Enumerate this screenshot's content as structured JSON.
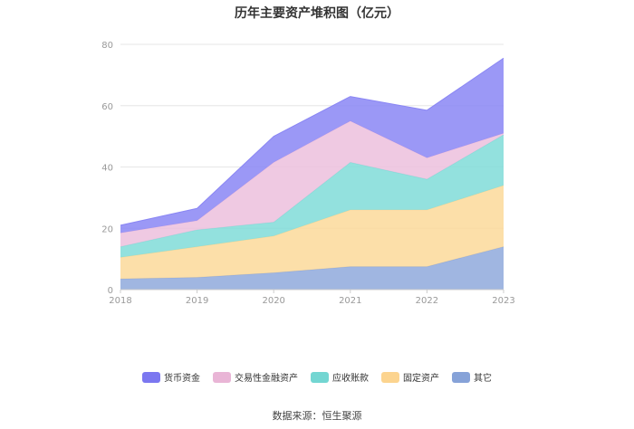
{
  "chart_data": {
    "type": "area",
    "stacked": true,
    "title": "历年主要资产堆积图（亿元）",
    "xlabel": "",
    "ylabel": "",
    "ylim": [
      0,
      80
    ],
    "yticks": [
      0,
      20,
      40,
      60,
      80
    ],
    "categories": [
      "2018",
      "2019",
      "2020",
      "2021",
      "2022",
      "2023"
    ],
    "series": [
      {
        "name": "其它",
        "color": "#8fa9dc",
        "values": [
          3.5,
          4.0,
          5.5,
          7.5,
          7.5,
          14.0
        ]
      },
      {
        "name": "固定资产",
        "color": "#fcd99a",
        "values": [
          7.0,
          10.0,
          12.0,
          18.5,
          18.5,
          20.0
        ]
      },
      {
        "name": "应收账款",
        "color": "#80dcd8",
        "values": [
          3.5,
          5.5,
          4.5,
          15.5,
          10.0,
          16.5
        ]
      },
      {
        "name": "交易性金融资产",
        "color": "#ecc0dd",
        "values": [
          4.5,
          3.0,
          19.5,
          13.5,
          7.0,
          0.5
        ]
      },
      {
        "name": "货币资金",
        "color": "#8a86f4",
        "values": [
          2.5,
          4.0,
          8.5,
          8.0,
          15.5,
          24.5
        ]
      }
    ],
    "legend": [
      {
        "name": "货币资金",
        "color": "#7b77f0"
      },
      {
        "name": "交易性金融资产",
        "color": "#e9b5d6"
      },
      {
        "name": "应收账款",
        "color": "#73d6d2"
      },
      {
        "name": "固定资产",
        "color": "#fcd48f"
      },
      {
        "name": "其它",
        "color": "#86a2d8"
      }
    ],
    "legend_position": "bottom",
    "grid": true
  },
  "source_text": "数据来源：恒生聚源"
}
